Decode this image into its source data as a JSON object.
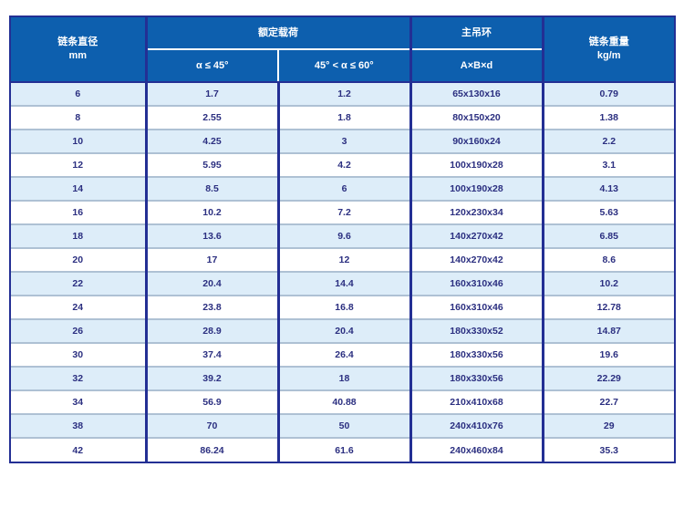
{
  "colors": {
    "header_blue": "#0d5fae",
    "border_navy": "#232f94",
    "row_light": "#ddedf9",
    "row_white": "#ffffff",
    "row_divider": "#aec1d4",
    "text_navy": "#2b2f80",
    "header_text": "#ffffff",
    "page_bg": "#ffffff"
  },
  "table": {
    "headers": {
      "diameter_label": "链条直径",
      "diameter_unit": "mm",
      "rated_load_group": "额定载荷",
      "angle_1": "α ≤ 45°",
      "angle_2": "45° < α ≤ 60°",
      "main_ring_group": "主吊环",
      "ring_dimensions": "A×B×d",
      "weight_label": "链条重量",
      "weight_unit": "kg/m"
    },
    "rows": [
      [
        "6",
        "1.7",
        "1.2",
        "65x130x16",
        "0.79"
      ],
      [
        "8",
        "2.55",
        "1.8",
        "80x150x20",
        "1.38"
      ],
      [
        "10",
        "4.25",
        "3",
        "90x160x24",
        "2.2"
      ],
      [
        "12",
        "5.95",
        "4.2",
        "100x190x28",
        "3.1"
      ],
      [
        "14",
        "8.5",
        "6",
        "100x190x28",
        "4.13"
      ],
      [
        "16",
        "10.2",
        "7.2",
        "120x230x34",
        "5.63"
      ],
      [
        "18",
        "13.6",
        "9.6",
        "140x270x42",
        "6.85"
      ],
      [
        "20",
        "17",
        "12",
        "140x270x42",
        "8.6"
      ],
      [
        "22",
        "20.4",
        "14.4",
        "160x310x46",
        "10.2"
      ],
      [
        "24",
        "23.8",
        "16.8",
        "160x310x46",
        "12.78"
      ],
      [
        "26",
        "28.9",
        "20.4",
        "180x330x52",
        "14.87"
      ],
      [
        "30",
        "37.4",
        "26.4",
        "180x330x56",
        "19.6"
      ],
      [
        "32",
        "39.2",
        "18",
        "180x330x56",
        "22.29"
      ],
      [
        "34",
        "56.9",
        "40.88",
        "210x410x68",
        "22.7"
      ],
      [
        "38",
        "70",
        "50",
        "240x410x76",
        "29"
      ],
      [
        "42",
        "86.24",
        "61.6",
        "240x460x84",
        "35.3"
      ]
    ]
  }
}
